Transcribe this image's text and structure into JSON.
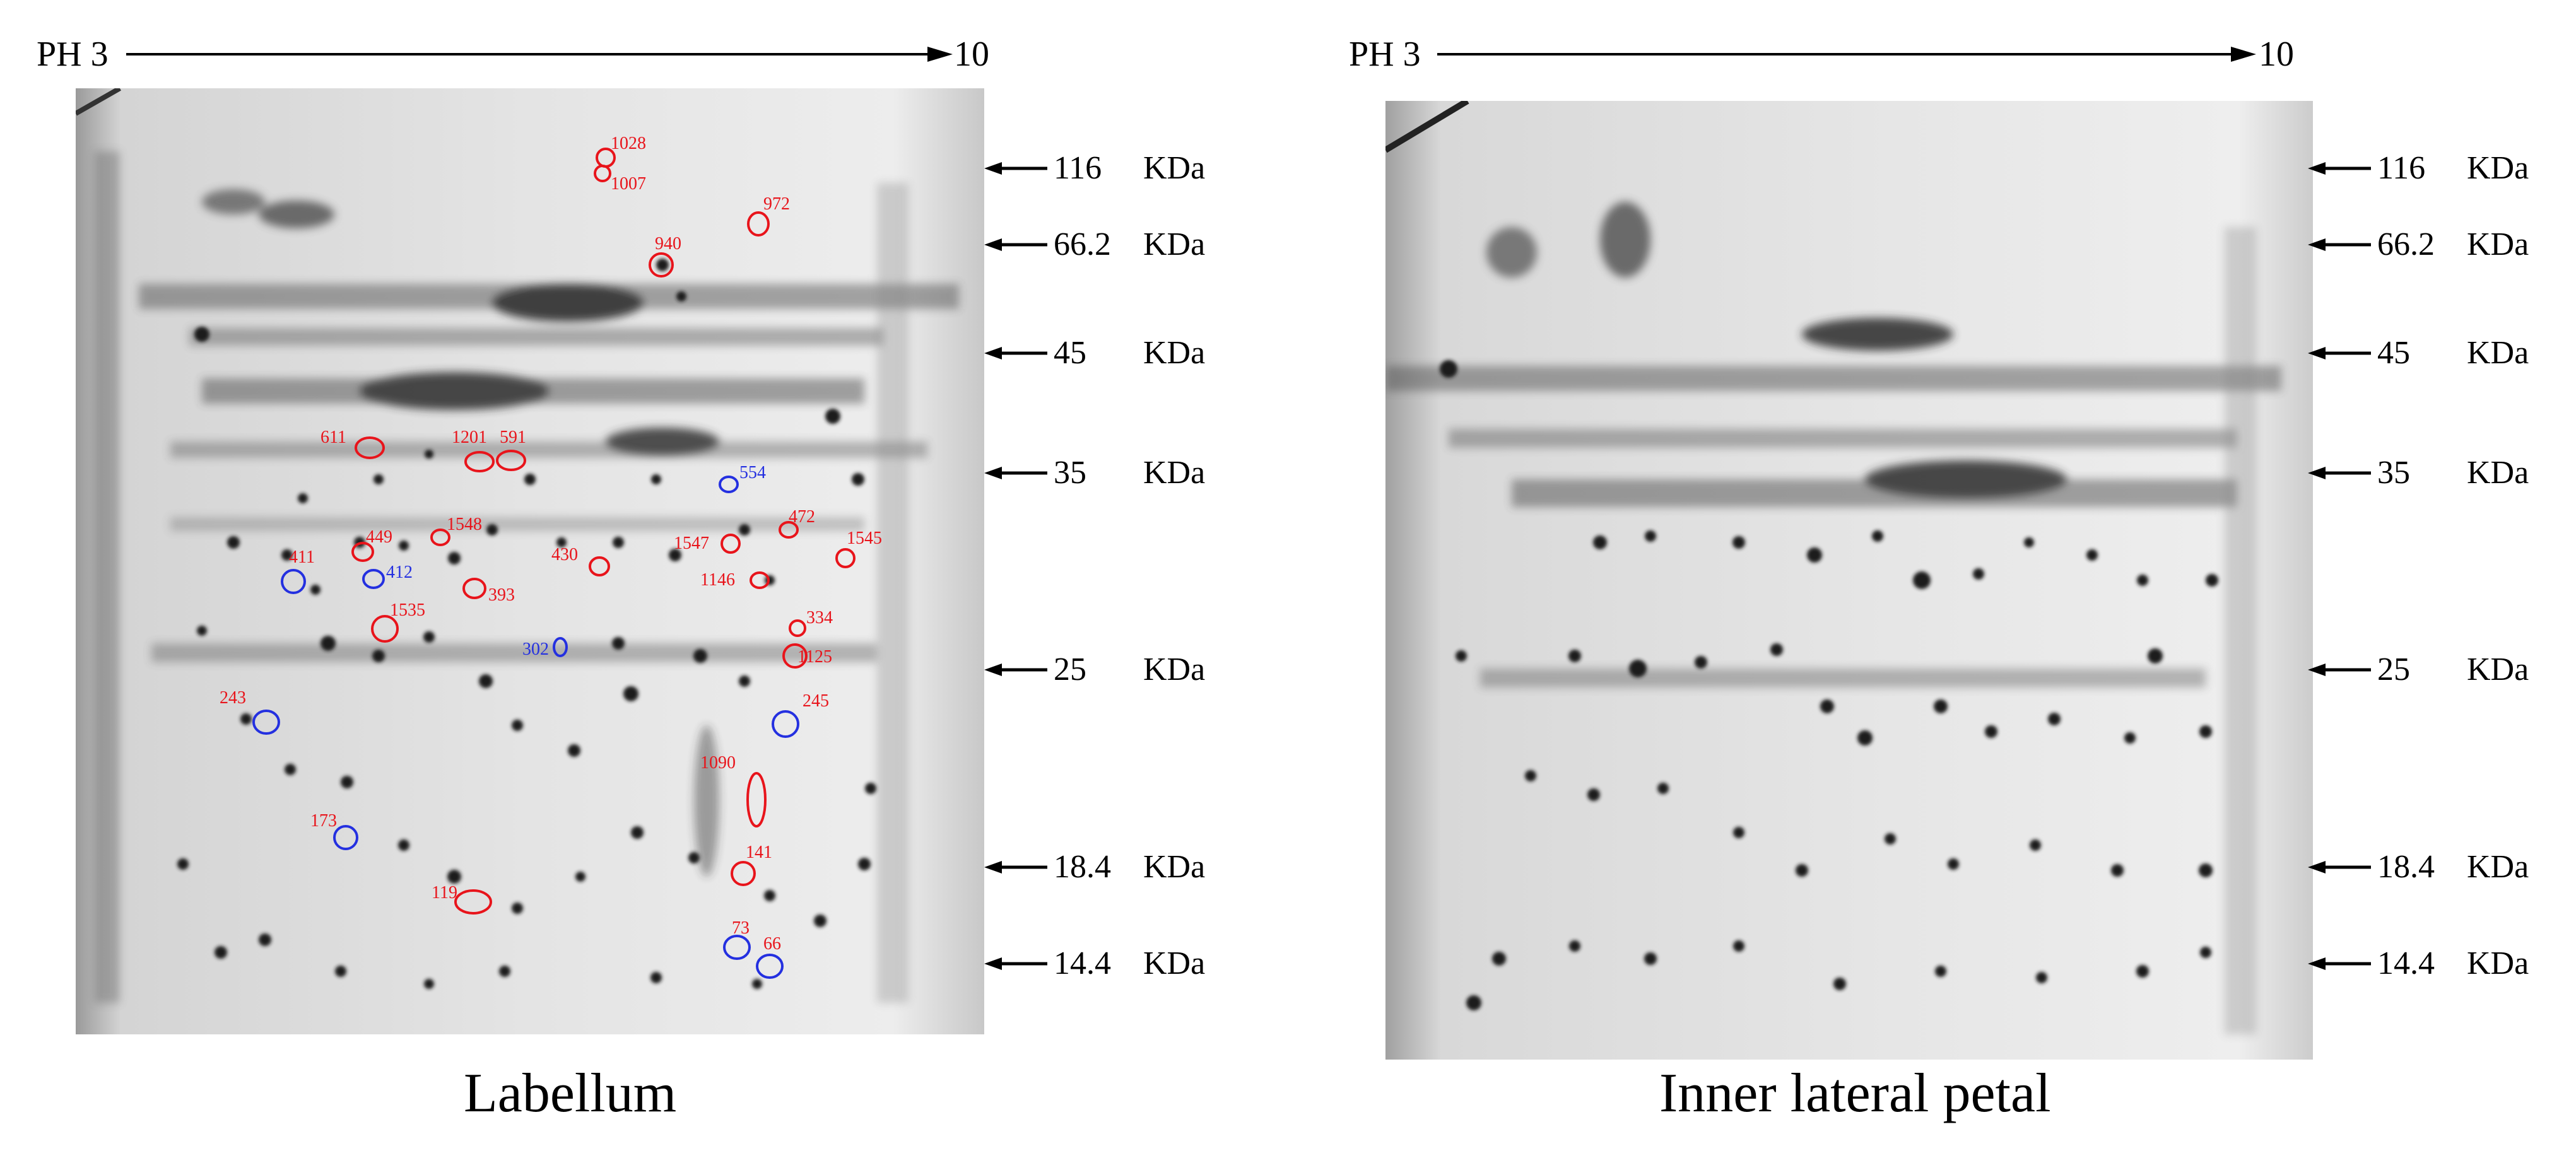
{
  "ph_axis": {
    "start": "PH 3",
    "end": "10"
  },
  "mw_markers": [
    {
      "value": "116",
      "unit": "KDa"
    },
    {
      "value": "66.2",
      "unit": "KDa"
    },
    {
      "value": "45",
      "unit": "KDa"
    },
    {
      "value": "35",
      "unit": "KDa"
    },
    {
      "value": "25",
      "unit": "KDa"
    },
    {
      "value": "18.4",
      "unit": "KDa"
    },
    {
      "value": "14.4",
      "unit": "KDa"
    }
  ],
  "panels": [
    {
      "caption": "Labellum"
    },
    {
      "caption": "Inner lateral petal"
    }
  ],
  "colors": {
    "up_regulated": "#e8141b",
    "down_regulated": "#2430e0"
  },
  "spot_labels": {
    "red": [
      "1028",
      "1007",
      "972",
      "940",
      "611",
      "1201",
      "591",
      "1548",
      "449",
      "411",
      "1547",
      "472",
      "1545",
      "430",
      "393",
      "1146",
      "1535",
      "334",
      "1125",
      "1090",
      "141",
      "119"
    ],
    "blue": [
      "554",
      "412",
      "302",
      "243",
      "245",
      "173",
      "73",
      "66"
    ]
  }
}
